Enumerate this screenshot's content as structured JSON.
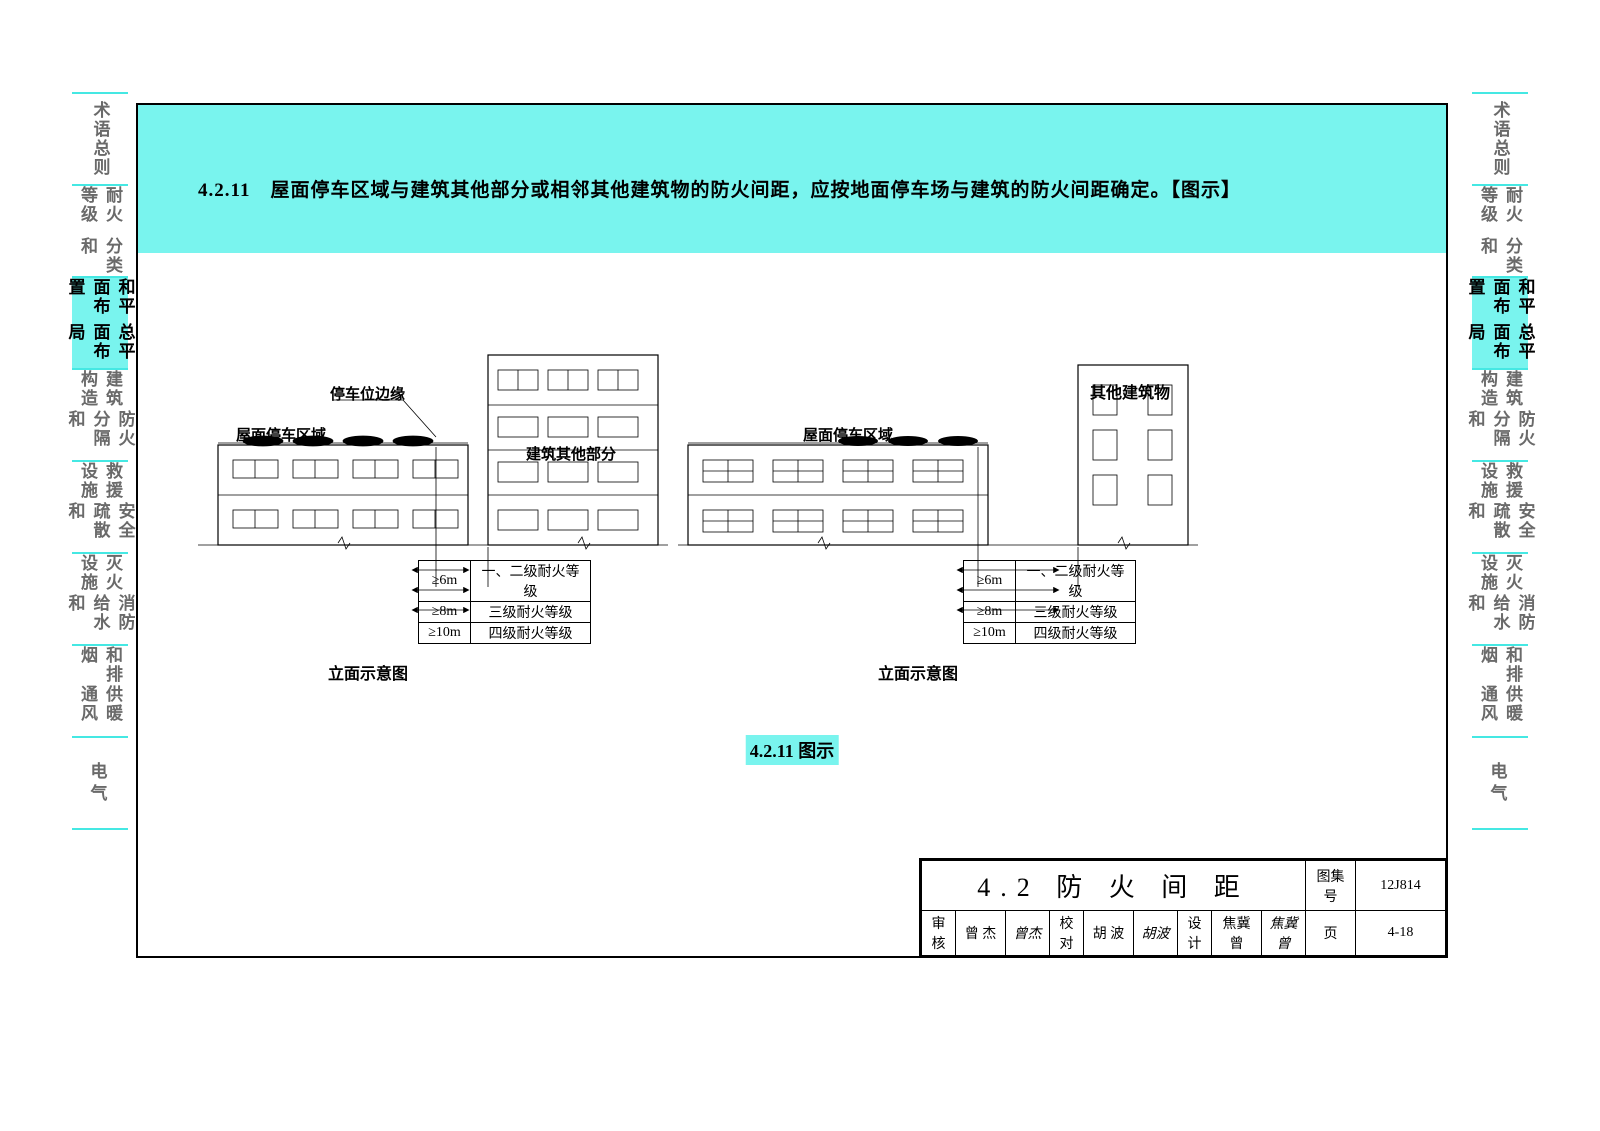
{
  "nav": [
    {
      "col1": "总则",
      "col2": "术语",
      "active": false
    },
    {
      "col1": "分类和",
      "col2": "耐火等级",
      "active": false
    },
    {
      "col1": "总平面布局",
      "col2": "和平面布置",
      "active": true
    },
    {
      "col1": "防火分隔和",
      "col2": "建筑构造",
      "active": false
    },
    {
      "col1": "安全疏散和",
      "col2": "救援设施",
      "active": false
    },
    {
      "col1": "消防给水和",
      "col2": "灭火设施",
      "active": false
    },
    {
      "col1": "供暖通风",
      "col2": "和排烟",
      "active": false
    },
    {
      "col1": "电气",
      "col2": "",
      "active": false,
      "single": true
    }
  ],
  "header_text": "4.2.11　屋面停车区域与建筑其他部分或相邻其他建筑物的防火间距，应按地面停车场与建筑的防火间距确定。【图示】",
  "diagram1": {
    "parking_edge": "停车位边缘",
    "roof_parking": "屋面停车区域",
    "other_part": "建筑其他部分",
    "caption": "立面示意图"
  },
  "diagram2": {
    "roof_parking": "屋面停车区域",
    "other_building": "其他建筑物",
    "caption": "立面示意图"
  },
  "distance_table": {
    "rows": [
      {
        "dist": "≥6m",
        "grade": "一、二级耐火等级"
      },
      {
        "dist": "≥8m",
        "grade": "三级耐火等级"
      },
      {
        "dist": "≥10m",
        "grade": "四级耐火等级"
      }
    ]
  },
  "figure_tag": "4.2.11 图示",
  "title_block": {
    "section": "4.2 防 火 间 距",
    "set_label": "图集号",
    "set_value": "12J814",
    "row": {
      "audit_l": "审核",
      "audit_v": "曾 杰",
      "audit_sig": "曾杰",
      "check_l": "校对",
      "check_v": "胡 波",
      "check_sig": "胡波",
      "design_l": "设计",
      "design_v": "焦冀曾",
      "design_sig": "焦冀曾",
      "page_l": "页",
      "page_v": "4-18"
    }
  },
  "colors": {
    "cyan": "#79f4ee",
    "cyan_line": "#45e8e3",
    "text_grey": "#6a6a6a"
  }
}
